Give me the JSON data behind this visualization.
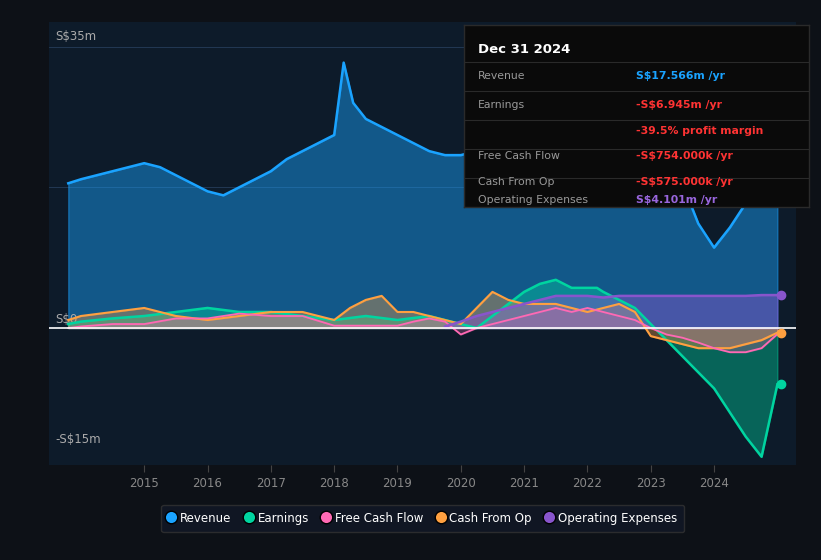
{
  "bg_color": "#0d1117",
  "plot_bg_color": "#0d1b2a",
  "grid_color": "#263d5a",
  "ylabel_top": "S$35m",
  "ylabel_zero": "S$0",
  "ylabel_bottom": "-S$15m",
  "ylim": [
    -17,
    38
  ],
  "xlim": [
    2013.5,
    2025.3
  ],
  "xticks": [
    2015,
    2016,
    2017,
    2018,
    2019,
    2020,
    2021,
    2022,
    2023,
    2024
  ],
  "revenue_color": "#1aa3ff",
  "earnings_color": "#00d4a0",
  "fcf_color": "#ff69b4",
  "cashfromop_color": "#ffa040",
  "opex_color": "#8855cc",
  "legend_items": [
    "Revenue",
    "Earnings",
    "Free Cash Flow",
    "Cash From Op",
    "Operating Expenses"
  ],
  "legend_colors": [
    "#1aa3ff",
    "#00d4a0",
    "#ff69b4",
    "#ffa040",
    "#8855cc"
  ],
  "revenue_x": [
    2013.8,
    2014.0,
    2014.25,
    2014.5,
    2014.75,
    2015.0,
    2015.25,
    2015.5,
    2015.75,
    2016.0,
    2016.25,
    2016.5,
    2016.75,
    2017.0,
    2017.25,
    2017.5,
    2017.75,
    2018.0,
    2018.15,
    2018.3,
    2018.5,
    2018.75,
    2019.0,
    2019.25,
    2019.5,
    2019.75,
    2020.0,
    2020.25,
    2020.5,
    2020.75,
    2021.0,
    2021.25,
    2021.5,
    2021.75,
    2022.0,
    2022.25,
    2022.5,
    2022.75,
    2023.0,
    2023.25,
    2023.5,
    2023.75,
    2024.0,
    2024.25,
    2024.5,
    2024.75,
    2025.0
  ],
  "revenue_y": [
    18,
    18.5,
    19,
    19.5,
    20,
    20.5,
    20,
    19,
    18,
    17,
    16.5,
    17.5,
    18.5,
    19.5,
    21,
    22,
    23,
    24,
    33,
    28,
    26,
    25,
    24,
    23,
    22,
    21.5,
    21.5,
    22,
    22.5,
    22.5,
    22,
    22,
    22.5,
    23,
    24,
    24.5,
    23,
    22,
    21,
    20,
    18,
    13,
    10,
    12.5,
    15.5,
    17,
    18
  ],
  "earnings_x": [
    2013.8,
    2014.0,
    2014.5,
    2015.0,
    2015.5,
    2016.0,
    2016.5,
    2017.0,
    2017.5,
    2018.0,
    2018.5,
    2019.0,
    2019.5,
    2020.0,
    2020.25,
    2020.5,
    2020.75,
    2021.0,
    2021.25,
    2021.5,
    2021.75,
    2022.0,
    2022.15,
    2022.25,
    2022.5,
    2022.75,
    2023.0,
    2023.25,
    2023.5,
    2023.75,
    2024.0,
    2024.25,
    2024.5,
    2024.75,
    2025.0
  ],
  "earnings_y": [
    0.5,
    0.8,
    1.2,
    1.5,
    2.0,
    2.5,
    2.0,
    2.0,
    1.5,
    1.0,
    1.5,
    1.0,
    1.5,
    0.5,
    0.0,
    1.5,
    3.0,
    4.5,
    5.5,
    6.0,
    5.0,
    5.0,
    5.0,
    4.5,
    3.5,
    2.5,
    0.5,
    -1.5,
    -3.5,
    -5.5,
    -7.5,
    -10.5,
    -13.5,
    -16.0,
    -7.0
  ],
  "fcf_x": [
    2013.8,
    2014.0,
    2014.5,
    2015.0,
    2015.5,
    2016.0,
    2016.5,
    2017.0,
    2017.5,
    2018.0,
    2018.5,
    2019.0,
    2019.25,
    2019.5,
    2019.75,
    2020.0,
    2020.25,
    2020.5,
    2020.75,
    2021.0,
    2021.25,
    2021.5,
    2021.75,
    2022.0,
    2022.25,
    2022.5,
    2022.75,
    2023.0,
    2023.25,
    2023.5,
    2023.75,
    2024.0,
    2024.25,
    2024.5,
    2024.75,
    2025.0
  ],
  "fcf_y": [
    0.0,
    0.2,
    0.5,
    0.5,
    1.2,
    1.2,
    1.8,
    1.5,
    1.5,
    0.3,
    0.3,
    0.3,
    0.8,
    1.2,
    0.8,
    -0.8,
    0.0,
    0.5,
    1.0,
    1.5,
    2.0,
    2.5,
    2.0,
    2.5,
    2.0,
    1.5,
    1.0,
    0.0,
    -0.8,
    -1.2,
    -1.8,
    -2.5,
    -3.0,
    -3.0,
    -2.5,
    -0.75
  ],
  "cashfromop_x": [
    2013.8,
    2014.0,
    2014.5,
    2015.0,
    2015.5,
    2016.0,
    2016.5,
    2017.0,
    2017.5,
    2018.0,
    2018.25,
    2018.5,
    2018.75,
    2019.0,
    2019.25,
    2019.5,
    2019.75,
    2020.0,
    2020.25,
    2020.5,
    2020.75,
    2021.0,
    2021.25,
    2021.5,
    2021.75,
    2022.0,
    2022.25,
    2022.5,
    2022.75,
    2023.0,
    2023.25,
    2023.5,
    2023.75,
    2024.0,
    2024.25,
    2024.5,
    2024.75,
    2025.0
  ],
  "cashfromop_y": [
    1.0,
    1.5,
    2.0,
    2.5,
    1.5,
    1.0,
    1.5,
    2.0,
    2.0,
    1.0,
    2.5,
    3.5,
    4.0,
    2.0,
    2.0,
    1.5,
    1.0,
    0.5,
    2.5,
    4.5,
    3.5,
    3.0,
    3.0,
    3.0,
    2.5,
    2.0,
    2.5,
    3.0,
    2.0,
    -1.0,
    -1.5,
    -2.0,
    -2.5,
    -2.5,
    -2.5,
    -2.0,
    -1.5,
    -0.575
  ],
  "opex_x": [
    2019.75,
    2020.0,
    2020.25,
    2020.5,
    2020.75,
    2021.0,
    2021.25,
    2021.5,
    2021.75,
    2022.0,
    2022.25,
    2022.5,
    2022.75,
    2023.0,
    2023.25,
    2023.5,
    2023.75,
    2024.0,
    2024.25,
    2024.5,
    2024.75,
    2025.0
  ],
  "opex_y": [
    0.2,
    0.8,
    1.5,
    2.0,
    2.5,
    3.0,
    3.5,
    4.0,
    4.0,
    4.0,
    3.8,
    4.0,
    4.0,
    4.0,
    4.0,
    4.0,
    4.0,
    4.0,
    4.0,
    4.0,
    4.1,
    4.101
  ]
}
